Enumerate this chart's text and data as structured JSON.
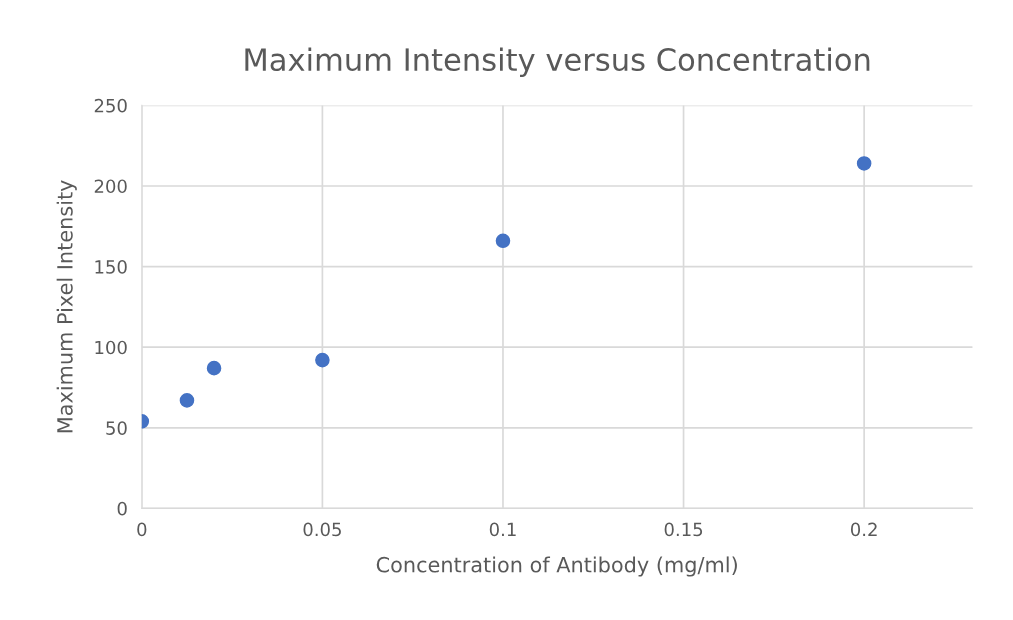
{
  "chart_data": {
    "type": "scatter",
    "title": "Maximum Intensity versus Concentration",
    "xlabel": "Concentration of Antibody (mg/ml)",
    "ylabel": "Maximum Pixel Intensity",
    "x": [
      0,
      0.0125,
      0.02,
      0.05,
      0.1,
      0.2
    ],
    "series": [
      {
        "color": "#4472c4",
        "values": [
          54,
          67,
          87,
          92,
          166,
          214
        ]
      }
    ],
    "xlim": [
      0,
      0.23
    ],
    "xticks": [
      0,
      0.05,
      0.1,
      0.15,
      0.2
    ],
    "ylim": [
      0,
      250
    ],
    "yticks": [
      0,
      50,
      100,
      150,
      200,
      250
    ],
    "grid": true,
    "marker": "circle"
  }
}
